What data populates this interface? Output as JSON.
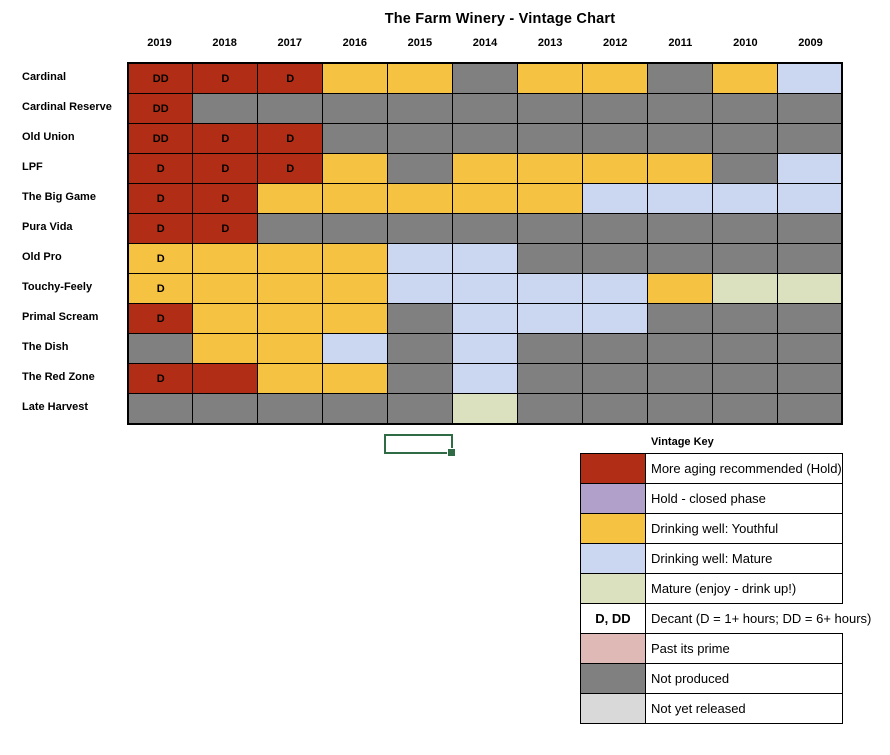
{
  "title": "The Farm Winery - Vintage Chart",
  "colors": {
    "hold_red": "#B22D15",
    "closed_purple": "#B1A0C9",
    "youthful_yellow": "#F5C242",
    "mature_blue": "#CBD7F0",
    "drink_up_green": "#DBE1BE",
    "past_prime_pink": "#DFB9B6",
    "not_produced_gray": "#808080",
    "not_released_lightgray": "#D9D9D9",
    "selection_green": "#2F6C46"
  },
  "years": [
    "2019",
    "2018",
    "2017",
    "2016",
    "2015",
    "2014",
    "2013",
    "2012",
    "2011",
    "2010",
    "2009"
  ],
  "wines": [
    {
      "name": "Cardinal",
      "cells": [
        [
          "red",
          "DD"
        ],
        [
          "red",
          "D"
        ],
        [
          "red",
          "D"
        ],
        [
          "yellow",
          ""
        ],
        [
          "yellow",
          ""
        ],
        [
          "gray",
          ""
        ],
        [
          "yellow",
          ""
        ],
        [
          "yellow",
          ""
        ],
        [
          "gray",
          ""
        ],
        [
          "yellow",
          ""
        ],
        [
          "blue",
          ""
        ]
      ]
    },
    {
      "name": "Cardinal Reserve",
      "cells": [
        [
          "red",
          "DD"
        ],
        [
          "gray",
          ""
        ],
        [
          "gray",
          ""
        ],
        [
          "gray",
          ""
        ],
        [
          "gray",
          ""
        ],
        [
          "gray",
          ""
        ],
        [
          "gray",
          ""
        ],
        [
          "gray",
          ""
        ],
        [
          "gray",
          ""
        ],
        [
          "gray",
          ""
        ],
        [
          "gray",
          ""
        ]
      ]
    },
    {
      "name": "Old Union",
      "cells": [
        [
          "red",
          "DD"
        ],
        [
          "red",
          "D"
        ],
        [
          "red",
          "D"
        ],
        [
          "gray",
          ""
        ],
        [
          "gray",
          ""
        ],
        [
          "gray",
          ""
        ],
        [
          "gray",
          ""
        ],
        [
          "gray",
          ""
        ],
        [
          "gray",
          ""
        ],
        [
          "gray",
          ""
        ],
        [
          "gray",
          ""
        ]
      ]
    },
    {
      "name": "LPF",
      "cells": [
        [
          "red",
          "D"
        ],
        [
          "red",
          "D"
        ],
        [
          "red",
          "D"
        ],
        [
          "yellow",
          ""
        ],
        [
          "gray",
          ""
        ],
        [
          "yellow",
          ""
        ],
        [
          "yellow",
          ""
        ],
        [
          "yellow",
          ""
        ],
        [
          "yellow",
          ""
        ],
        [
          "gray",
          ""
        ],
        [
          "blue",
          ""
        ]
      ]
    },
    {
      "name": "The Big Game",
      "cells": [
        [
          "red",
          "D"
        ],
        [
          "red",
          "D"
        ],
        [
          "yellow",
          ""
        ],
        [
          "yellow",
          ""
        ],
        [
          "yellow",
          ""
        ],
        [
          "yellow",
          ""
        ],
        [
          "yellow",
          ""
        ],
        [
          "blue",
          ""
        ],
        [
          "blue",
          ""
        ],
        [
          "blue",
          ""
        ],
        [
          "blue",
          ""
        ]
      ]
    },
    {
      "name": "Pura Vida",
      "cells": [
        [
          "red",
          "D"
        ],
        [
          "red",
          "D"
        ],
        [
          "gray",
          ""
        ],
        [
          "gray",
          ""
        ],
        [
          "gray",
          ""
        ],
        [
          "gray",
          ""
        ],
        [
          "gray",
          ""
        ],
        [
          "gray",
          ""
        ],
        [
          "gray",
          ""
        ],
        [
          "gray",
          ""
        ],
        [
          "gray",
          ""
        ]
      ]
    },
    {
      "name": "Old Pro",
      "cells": [
        [
          "yellow",
          "D"
        ],
        [
          "yellow",
          ""
        ],
        [
          "yellow",
          ""
        ],
        [
          "yellow",
          ""
        ],
        [
          "blue",
          ""
        ],
        [
          "blue",
          ""
        ],
        [
          "gray",
          ""
        ],
        [
          "gray",
          ""
        ],
        [
          "gray",
          ""
        ],
        [
          "gray",
          ""
        ],
        [
          "gray",
          ""
        ]
      ]
    },
    {
      "name": "Touchy-Feely",
      "cells": [
        [
          "yellow",
          "D"
        ],
        [
          "yellow",
          ""
        ],
        [
          "yellow",
          ""
        ],
        [
          "yellow",
          ""
        ],
        [
          "blue",
          ""
        ],
        [
          "blue",
          ""
        ],
        [
          "blue",
          ""
        ],
        [
          "blue",
          ""
        ],
        [
          "yellow",
          ""
        ],
        [
          "green",
          ""
        ],
        [
          "green",
          ""
        ]
      ]
    },
    {
      "name": "Primal Scream",
      "cells": [
        [
          "red",
          "D"
        ],
        [
          "yellow",
          ""
        ],
        [
          "yellow",
          ""
        ],
        [
          "yellow",
          ""
        ],
        [
          "gray",
          ""
        ],
        [
          "blue",
          ""
        ],
        [
          "blue",
          ""
        ],
        [
          "blue",
          ""
        ],
        [
          "gray",
          ""
        ],
        [
          "gray",
          ""
        ],
        [
          "gray",
          ""
        ]
      ]
    },
    {
      "name": "The Dish",
      "cells": [
        [
          "gray",
          ""
        ],
        [
          "yellow",
          ""
        ],
        [
          "yellow",
          ""
        ],
        [
          "blue",
          ""
        ],
        [
          "gray",
          ""
        ],
        [
          "blue",
          ""
        ],
        [
          "gray",
          ""
        ],
        [
          "gray",
          ""
        ],
        [
          "gray",
          ""
        ],
        [
          "gray",
          ""
        ],
        [
          "gray",
          ""
        ]
      ]
    },
    {
      "name": "The Red Zone",
      "cells": [
        [
          "red",
          "D"
        ],
        [
          "red",
          ""
        ],
        [
          "yellow",
          ""
        ],
        [
          "yellow",
          ""
        ],
        [
          "gray",
          ""
        ],
        [
          "blue",
          ""
        ],
        [
          "gray",
          ""
        ],
        [
          "gray",
          ""
        ],
        [
          "gray",
          ""
        ],
        [
          "gray",
          ""
        ],
        [
          "gray",
          ""
        ]
      ]
    },
    {
      "name": "Late Harvest",
      "cells": [
        [
          "gray",
          ""
        ],
        [
          "gray",
          ""
        ],
        [
          "gray",
          ""
        ],
        [
          "gray",
          ""
        ],
        [
          "gray",
          ""
        ],
        [
          "green",
          ""
        ],
        [
          "gray",
          ""
        ],
        [
          "gray",
          ""
        ],
        [
          "gray",
          ""
        ],
        [
          "gray",
          ""
        ],
        [
          "gray",
          ""
        ]
      ]
    }
  ],
  "legend": {
    "title": "Vintage Key",
    "items": [
      {
        "swatch": "red",
        "swatch_label": "",
        "label": "More aging recommended (Hold)"
      },
      {
        "swatch": "purple",
        "swatch_label": "",
        "label": "Hold - closed phase"
      },
      {
        "swatch": "yellow",
        "swatch_label": "",
        "label": "Drinking well: Youthful"
      },
      {
        "swatch": "blue",
        "swatch_label": "",
        "label": "Drinking well: Mature"
      },
      {
        "swatch": "green",
        "swatch_label": "",
        "label": "Mature (enjoy - drink up!)"
      },
      {
        "swatch": "none",
        "swatch_label": "D, DD",
        "label": "Decant (D = 1+ hours; DD = 6+ hours)",
        "overflow": true
      },
      {
        "swatch": "pink",
        "swatch_label": "",
        "label": "Past its prime"
      },
      {
        "swatch": "darkgray",
        "swatch_label": "",
        "label": "Not produced"
      },
      {
        "swatch": "lightgray",
        "swatch_label": "",
        "label": "Not yet released"
      }
    ]
  }
}
